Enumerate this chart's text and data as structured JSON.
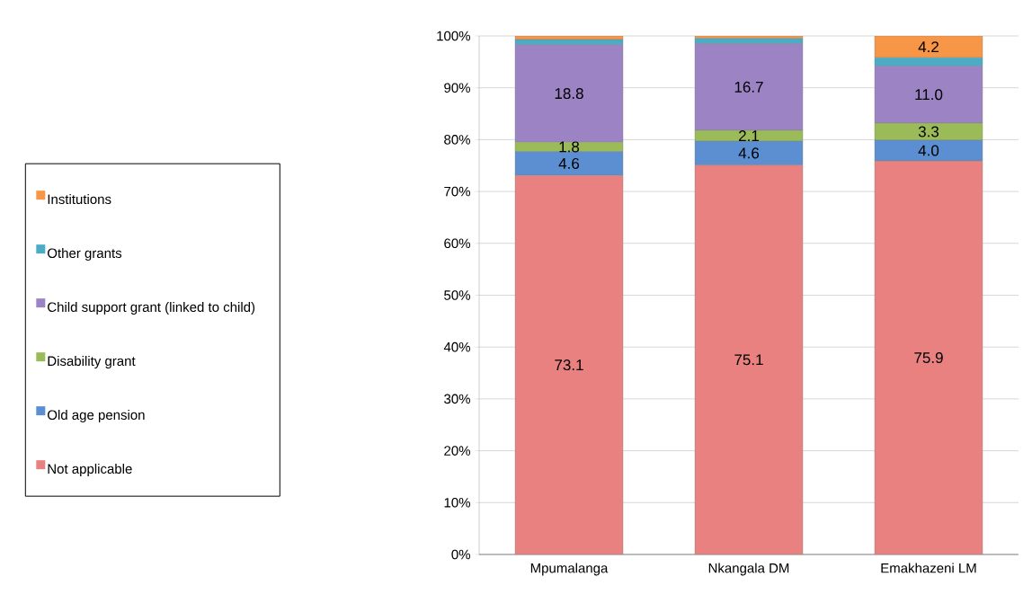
{
  "chart_data": {
    "type": "bar",
    "stacked": true,
    "categories": [
      "Mpumalanga",
      "Nkangala DM",
      "Emakhazeni LM"
    ],
    "series": [
      {
        "name": "Not applicable",
        "color": "#e8817f",
        "values": [
          73.1,
          75.1,
          75.9
        ],
        "value_labels": [
          "73.1",
          "75.1",
          "75.9"
        ]
      },
      {
        "name": "Old age pension",
        "color": "#5b8fd1",
        "values": [
          4.6,
          4.6,
          4.0
        ],
        "value_labels": [
          "4.6",
          "4.6",
          "4.0"
        ]
      },
      {
        "name": "Disability grant",
        "color": "#9bbb59",
        "values": [
          1.8,
          2.1,
          3.3
        ],
        "value_labels": [
          "1.8",
          "2.1",
          "3.3"
        ]
      },
      {
        "name": "Child support grant (linked to child)",
        "color": "#9c83c4",
        "values": [
          18.8,
          16.7,
          11.0
        ],
        "value_labels": [
          "18.8",
          "16.7",
          "11.0"
        ]
      },
      {
        "name": "Other grants",
        "color": "#4bacc6",
        "values": [
          1.0,
          1.0,
          1.6
        ],
        "value_labels": [
          null,
          null,
          null
        ]
      },
      {
        "name": "Institutions",
        "color": "#f79646",
        "values": [
          0.7,
          0.5,
          4.2
        ],
        "value_labels": [
          null,
          null,
          "4.2"
        ]
      }
    ],
    "ylim": [
      0,
      100
    ],
    "yticks": [
      {
        "value": 0,
        "label": "0%"
      },
      {
        "value": 10,
        "label": "10%"
      },
      {
        "value": 20,
        "label": "20%"
      },
      {
        "value": 30,
        "label": "30%"
      },
      {
        "value": 40,
        "label": "40%"
      },
      {
        "value": 50,
        "label": "50%"
      },
      {
        "value": 60,
        "label": "60%"
      },
      {
        "value": 70,
        "label": "70%"
      },
      {
        "value": 80,
        "label": "80%"
      },
      {
        "value": 90,
        "label": "90%"
      },
      {
        "value": 100,
        "label": "100%"
      }
    ],
    "grid": "y",
    "legend": "left"
  }
}
